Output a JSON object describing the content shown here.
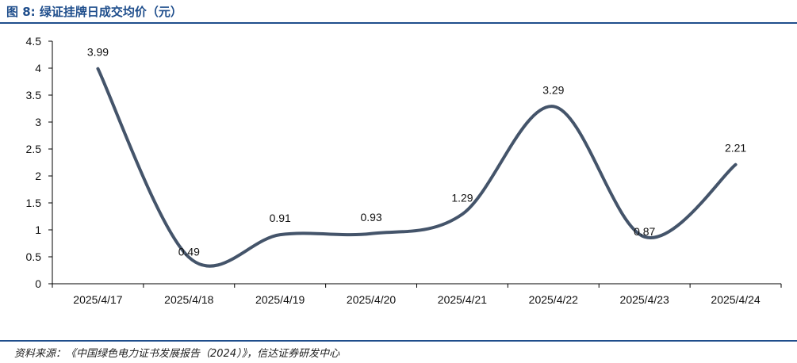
{
  "figure": {
    "title": "图  8:  绿证挂牌日成交均价（元）",
    "source": "资料来源：《中国绿色电力证书发展报告（2024）》，信达证券研发中心"
  },
  "chart_data": {
    "type": "line",
    "title": "绿证挂牌日成交均价（元）",
    "xlabel": "",
    "ylabel": "",
    "categories": [
      "2025/4/17",
      "2025/4/18",
      "2025/4/19",
      "2025/4/20",
      "2025/4/21",
      "2025/4/22",
      "2025/4/23",
      "2025/4/24"
    ],
    "series": [
      {
        "name": "绿证挂牌日成交均价",
        "values": [
          3.99,
          0.49,
          0.91,
          0.93,
          1.29,
          3.29,
          0.87,
          2.21
        ],
        "color": "#44546a"
      }
    ],
    "value_labels": [
      "3.99",
      "0.49",
      "0.91",
      "0.93",
      "1.29",
      "3.29",
      "0.87",
      "2.21"
    ],
    "ylim": [
      0,
      4.5
    ],
    "yticks": [
      0,
      0.5,
      1,
      1.5,
      2,
      2.5,
      3,
      3.5,
      4,
      4.5
    ],
    "ytick_labels": [
      "0",
      "0.5",
      "1",
      "1.5",
      "2",
      "2.5",
      "3",
      "3.5",
      "4",
      "4.5"
    ],
    "grid": false,
    "smooth": true
  }
}
